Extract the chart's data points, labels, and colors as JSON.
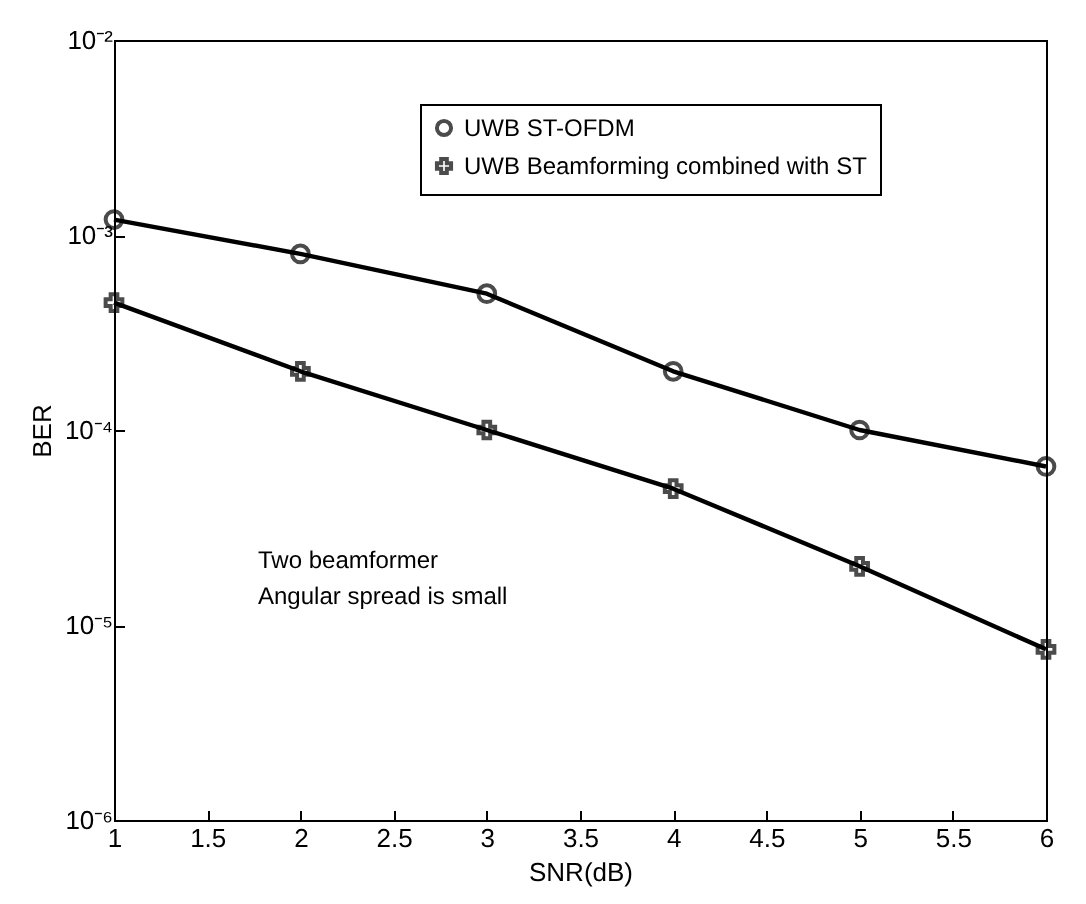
{
  "chart_data": {
    "type": "line",
    "xlabel": "SNR(dB)",
    "ylabel": "BER",
    "annotations": [
      "Two beamformer",
      "Angular spread is small"
    ],
    "x": [
      1,
      2,
      3,
      4,
      5,
      6
    ],
    "series": [
      {
        "name": "UWB ST-OFDM",
        "color": "#000000",
        "marker": "circle",
        "values": [
          0.0012,
          0.0008,
          0.0005,
          0.0002,
          0.0001,
          6.5e-05
        ]
      },
      {
        "name": "UWB Beamforming combined with ST",
        "color": "#000000",
        "marker": "cross",
        "values": [
          0.00045,
          0.0002,
          0.0001,
          5e-05,
          2e-05,
          7.5e-06
        ]
      }
    ],
    "log": "y",
    "xlim": [
      1,
      6
    ],
    "xticks": [
      1,
      1.5,
      2,
      2.5,
      3,
      3.5,
      4,
      4.5,
      5,
      5.5,
      6
    ],
    "ylim": [
      1e-06,
      0.01
    ],
    "yticks": [
      {
        "value": 1e-06,
        "label": "10⁻⁶"
      },
      {
        "value": 1e-05,
        "label": "10⁻⁵"
      },
      {
        "value": 0.0001,
        "label": "10⁻⁴"
      },
      {
        "value": 0.001,
        "label": "10⁻³"
      },
      {
        "value": 0.01,
        "label": "10⁻²"
      }
    ],
    "legend": "top right",
    "grid": false,
    "line_style": "solid"
  }
}
